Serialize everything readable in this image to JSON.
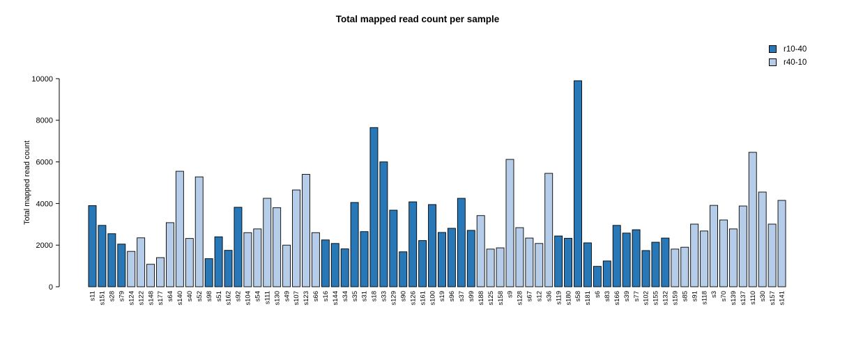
{
  "chart_data": {
    "type": "bar",
    "title": "Total mapped read count per sample",
    "xlabel": "",
    "ylabel": "Total mapped read count",
    "ylim": [
      0,
      10000
    ],
    "yticks": [
      0,
      2000,
      4000,
      6000,
      8000,
      10000
    ],
    "grid": false,
    "legend_position": "top-right",
    "legend": [
      {
        "label": "r10-40",
        "color": "#2878b8"
      },
      {
        "label": "r40-10",
        "color": "#b5cde9"
      }
    ],
    "bar_border_color": "#000000",
    "samples": [
      {
        "name": "s11",
        "value": 3900,
        "group": "r10-40"
      },
      {
        "name": "s151",
        "value": 2950,
        "group": "r10-40"
      },
      {
        "name": "s28",
        "value": 2550,
        "group": "r10-40"
      },
      {
        "name": "s79",
        "value": 2050,
        "group": "r10-40"
      },
      {
        "name": "s124",
        "value": 1700,
        "group": "r40-10"
      },
      {
        "name": "s122",
        "value": 2350,
        "group": "r40-10"
      },
      {
        "name": "s148",
        "value": 1080,
        "group": "r40-10"
      },
      {
        "name": "s177",
        "value": 1400,
        "group": "r40-10"
      },
      {
        "name": "s64",
        "value": 3080,
        "group": "r40-10"
      },
      {
        "name": "s140",
        "value": 5550,
        "group": "r40-10"
      },
      {
        "name": "s40",
        "value": 2320,
        "group": "r40-10"
      },
      {
        "name": "s52",
        "value": 5280,
        "group": "r40-10"
      },
      {
        "name": "s98",
        "value": 1350,
        "group": "r10-40"
      },
      {
        "name": "s51",
        "value": 2400,
        "group": "r10-40"
      },
      {
        "name": "s162",
        "value": 1750,
        "group": "r10-40"
      },
      {
        "name": "s92",
        "value": 3820,
        "group": "r10-40"
      },
      {
        "name": "s104",
        "value": 2600,
        "group": "r40-10"
      },
      {
        "name": "s54",
        "value": 2780,
        "group": "r40-10"
      },
      {
        "name": "s111",
        "value": 4250,
        "group": "r40-10"
      },
      {
        "name": "s130",
        "value": 3800,
        "group": "r40-10"
      },
      {
        "name": "s49",
        "value": 2000,
        "group": "r40-10"
      },
      {
        "name": "s107",
        "value": 4650,
        "group": "r40-10"
      },
      {
        "name": "s123",
        "value": 5400,
        "group": "r40-10"
      },
      {
        "name": "s66",
        "value": 2600,
        "group": "r40-10"
      },
      {
        "name": "s16",
        "value": 2250,
        "group": "r10-40"
      },
      {
        "name": "s144",
        "value": 2080,
        "group": "r10-40"
      },
      {
        "name": "s34",
        "value": 1820,
        "group": "r10-40"
      },
      {
        "name": "s35",
        "value": 4050,
        "group": "r10-40"
      },
      {
        "name": "s31",
        "value": 2650,
        "group": "r10-40"
      },
      {
        "name": "s18",
        "value": 7650,
        "group": "r10-40"
      },
      {
        "name": "s33",
        "value": 6000,
        "group": "r10-40"
      },
      {
        "name": "s129",
        "value": 3680,
        "group": "r10-40"
      },
      {
        "name": "s90",
        "value": 1680,
        "group": "r10-40"
      },
      {
        "name": "s126",
        "value": 4080,
        "group": "r10-40"
      },
      {
        "name": "s161",
        "value": 2220,
        "group": "r10-40"
      },
      {
        "name": "s100",
        "value": 3950,
        "group": "r10-40"
      },
      {
        "name": "s19",
        "value": 2610,
        "group": "r10-40"
      },
      {
        "name": "s96",
        "value": 2810,
        "group": "r10-40"
      },
      {
        "name": "s37",
        "value": 4250,
        "group": "r10-40"
      },
      {
        "name": "s99",
        "value": 2710,
        "group": "r10-40"
      },
      {
        "name": "s188",
        "value": 3420,
        "group": "r40-10"
      },
      {
        "name": "s125",
        "value": 1810,
        "group": "r40-10"
      },
      {
        "name": "s158",
        "value": 1870,
        "group": "r40-10"
      },
      {
        "name": "s9",
        "value": 6120,
        "group": "r40-10"
      },
      {
        "name": "s128",
        "value": 2840,
        "group": "r40-10"
      },
      {
        "name": "s67",
        "value": 2340,
        "group": "r40-10"
      },
      {
        "name": "s12",
        "value": 2080,
        "group": "r40-10"
      },
      {
        "name": "s36",
        "value": 5450,
        "group": "r40-10"
      },
      {
        "name": "s119",
        "value": 2440,
        "group": "r10-40"
      },
      {
        "name": "s180",
        "value": 2330,
        "group": "r10-40"
      },
      {
        "name": "s58",
        "value": 9900,
        "group": "r10-40"
      },
      {
        "name": "s181",
        "value": 2110,
        "group": "r10-40"
      },
      {
        "name": "s6",
        "value": 980,
        "group": "r10-40"
      },
      {
        "name": "s83",
        "value": 1240,
        "group": "r10-40"
      },
      {
        "name": "s166",
        "value": 2950,
        "group": "r10-40"
      },
      {
        "name": "s39",
        "value": 2580,
        "group": "r10-40"
      },
      {
        "name": "s77",
        "value": 2740,
        "group": "r10-40"
      },
      {
        "name": "s102",
        "value": 1740,
        "group": "r10-40"
      },
      {
        "name": "s155",
        "value": 2140,
        "group": "r10-40"
      },
      {
        "name": "s132",
        "value": 2340,
        "group": "r10-40"
      },
      {
        "name": "s159",
        "value": 1810,
        "group": "r40-10"
      },
      {
        "name": "s85",
        "value": 1900,
        "group": "r40-10"
      },
      {
        "name": "s91",
        "value": 3010,
        "group": "r40-10"
      },
      {
        "name": "s118",
        "value": 2680,
        "group": "r40-10"
      },
      {
        "name": "s3",
        "value": 3910,
        "group": "r40-10"
      },
      {
        "name": "s70",
        "value": 3210,
        "group": "r40-10"
      },
      {
        "name": "s139",
        "value": 2780,
        "group": "r40-10"
      },
      {
        "name": "s137",
        "value": 3880,
        "group": "r40-10"
      },
      {
        "name": "s110",
        "value": 6460,
        "group": "r40-10"
      },
      {
        "name": "s30",
        "value": 4550,
        "group": "r40-10"
      },
      {
        "name": "s157",
        "value": 3010,
        "group": "r40-10"
      },
      {
        "name": "s141",
        "value": 4150,
        "group": "r40-10"
      }
    ]
  }
}
